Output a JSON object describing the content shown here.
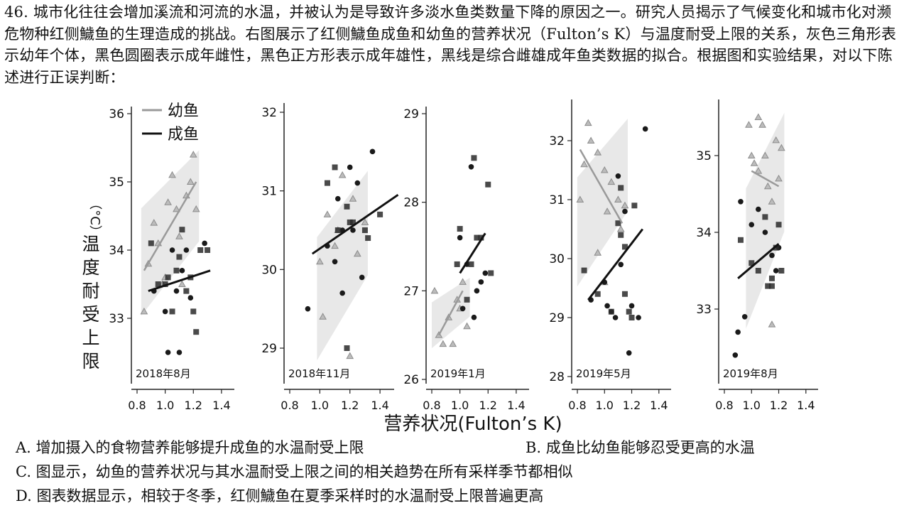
{
  "question": {
    "text": "46. 城市化往往会增加溪流和河流的水温，并被认为是导致许多淡水鱼类数量下降的原因之一。研究人员揭示了气候变化和城市化对濒危物种红侧鱥鱼的生理造成的挑战。右图展示了红侧鱥鱼成鱼和幼鱼的营养状况（Fulton’s K）与温度耐受上限的关系，灰色三角形表示幼年个体，黑色圆圈表示成年雌性，黑色正方形表示成年雄性，黑线是综合雌雄成年鱼类数据的拟合。根据图和实验结果，对以下陈述进行正误判断："
  },
  "figure": {
    "ylabel": "温度耐受上限（°C）",
    "ylabel_lines": [
      "温",
      "度",
      "耐",
      "受",
      "上",
      "限"
    ],
    "ylabel_unit": "（°C）",
    "xlabel": "营养状况(Fulton’s K)",
    "legend": {
      "juvenile": "幼鱼",
      "adult": "成鱼"
    },
    "colors": {
      "adult_line": "#111111",
      "juvenile_line": "#9a9a9a",
      "juvenile_marker": "#8c8c8c",
      "ci_band": "#d6d6d6",
      "female_marker": "#1a1a1a",
      "male_marker": "#2a2a2a"
    }
  },
  "chart_data": [
    {
      "type": "scatter",
      "panel": "2018年8月",
      "ylim": [
        32.5,
        36.2
      ],
      "yticks": [
        "33",
        "34",
        "35",
        "36"
      ],
      "xlim": [
        0.8,
        1.4
      ],
      "xticks": [
        "0.8",
        "1.0",
        "1.2",
        "1.4"
      ],
      "juvenile_points": [
        [
          0.85,
          33.1
        ],
        [
          0.88,
          33.8
        ],
        [
          0.92,
          34.4
        ],
        [
          0.95,
          34.1
        ],
        [
          1.0,
          33.6
        ],
        [
          1.02,
          34.7
        ],
        [
          1.05,
          35.1
        ],
        [
          1.08,
          34.6
        ],
        [
          1.1,
          34.2
        ],
        [
          1.12,
          33.5
        ],
        [
          1.15,
          34.8
        ],
        [
          1.18,
          35.0
        ],
        [
          1.2,
          35.4
        ],
        [
          1.22,
          34.6
        ],
        [
          0.98,
          33.5
        ]
      ],
      "female_points": [
        [
          0.92,
          33.4
        ],
        [
          1.0,
          33.1
        ],
        [
          1.02,
          32.5
        ],
        [
          1.05,
          34.0
        ],
        [
          1.08,
          33.4
        ],
        [
          1.1,
          32.5
        ],
        [
          1.12,
          33.7
        ],
        [
          1.15,
          34.0
        ],
        [
          1.28,
          34.1
        ],
        [
          1.18,
          33.3
        ]
      ],
      "male_points": [
        [
          0.9,
          34.1
        ],
        [
          0.95,
          33.5
        ],
        [
          1.0,
          33.5
        ],
        [
          1.05,
          33.1
        ],
        [
          1.08,
          33.7
        ],
        [
          1.1,
          33.9
        ],
        [
          1.12,
          34.3
        ],
        [
          1.15,
          33.4
        ],
        [
          1.18,
          33.6
        ],
        [
          1.2,
          33.1
        ],
        [
          1.22,
          32.8
        ],
        [
          1.25,
          34.0
        ],
        [
          1.3,
          34.0
        ],
        [
          1.02,
          33.6
        ]
      ],
      "juvenile_fit": [
        [
          0.85,
          33.7
        ],
        [
          1.22,
          35.0
        ]
      ],
      "adult_fit": [
        [
          0.88,
          33.4
        ],
        [
          1.32,
          33.7
        ]
      ]
    },
    {
      "type": "scatter",
      "panel": "2018年11月",
      "ylim": [
        28.8,
        32.1
      ],
      "yticks": [
        "29",
        "30",
        "31",
        "32"
      ],
      "xlim": [
        0.8,
        1.6
      ],
      "xticks": [
        "0.8",
        "1.0",
        "1.2",
        "1.4"
      ],
      "juvenile_points": [
        [
          1.0,
          30.1
        ],
        [
          1.02,
          29.4
        ],
        [
          1.05,
          30.7
        ],
        [
          1.1,
          30.3
        ],
        [
          1.15,
          31.2
        ],
        [
          1.2,
          28.9
        ],
        [
          1.22,
          30.9
        ],
        [
          1.25,
          30.2
        ],
        [
          1.3,
          30.6
        ],
        [
          1.12,
          30.5
        ]
      ],
      "female_points": [
        [
          0.92,
          29.5
        ],
        [
          1.05,
          30.3
        ],
        [
          1.1,
          30.1
        ],
        [
          1.12,
          30.9
        ],
        [
          1.15,
          30.5
        ],
        [
          1.2,
          31.3
        ],
        [
          1.25,
          31.1
        ],
        [
          1.35,
          31.5
        ],
        [
          1.28,
          29.9
        ],
        [
          1.15,
          29.7
        ],
        [
          1.22,
          30.5
        ]
      ],
      "male_points": [
        [
          1.05,
          31.1
        ],
        [
          1.1,
          31.3
        ],
        [
          1.12,
          30.5
        ],
        [
          1.18,
          30.8
        ],
        [
          1.2,
          30.6
        ],
        [
          1.22,
          30.6
        ],
        [
          1.3,
          30.5
        ],
        [
          1.32,
          30.4
        ],
        [
          1.4,
          30.7
        ],
        [
          1.18,
          29.0
        ]
      ],
      "juvenile_fit": [],
      "adult_fit": [
        [
          0.95,
          30.2
        ],
        [
          1.52,
          30.95
        ]
      ]
    },
    {
      "type": "scatter",
      "panel": "2019年1月",
      "ylim": [
        25.9,
        29.1
      ],
      "yticks": [
        "26",
        "27",
        "28",
        "29"
      ],
      "xlim": [
        0.8,
        1.4
      ],
      "xticks": [
        "0.8",
        "1.0",
        "1.2",
        "1.4"
      ],
      "juvenile_points": [
        [
          0.82,
          27.0
        ],
        [
          0.85,
          26.5
        ],
        [
          0.88,
          26.4
        ],
        [
          0.92,
          26.7
        ],
        [
          0.95,
          26.4
        ],
        [
          1.0,
          26.8
        ],
        [
          1.02,
          27.1
        ],
        [
          1.05,
          26.6
        ],
        [
          0.98,
          26.9
        ]
      ],
      "female_points": [
        [
          1.0,
          27.6
        ],
        [
          1.05,
          27.3
        ],
        [
          1.08,
          28.4
        ],
        [
          1.1,
          26.7
        ],
        [
          1.12,
          27.0
        ],
        [
          1.15,
          27.1
        ],
        [
          1.18,
          27.2
        ],
        [
          1.02,
          26.8
        ]
      ],
      "male_points": [
        [
          0.98,
          27.3
        ],
        [
          1.0,
          27.7
        ],
        [
          1.05,
          26.9
        ],
        [
          1.1,
          28.5
        ],
        [
          1.12,
          27.6
        ],
        [
          1.15,
          27.6
        ],
        [
          1.2,
          28.2
        ],
        [
          1.22,
          27.2
        ],
        [
          1.08,
          27.3
        ]
      ],
      "juvenile_fit": [
        [
          0.85,
          26.5
        ],
        [
          1.02,
          27.0
        ]
      ],
      "adult_fit": [
        [
          1.0,
          27.2
        ],
        [
          1.18,
          27.65
        ]
      ]
    },
    {
      "type": "scatter",
      "panel": "2019年5月",
      "ylim": [
        27.9,
        32.6
      ],
      "yticks": [
        "28",
        "29",
        "30",
        "31",
        "32"
      ],
      "xlim": [
        0.8,
        1.4
      ],
      "xticks": [
        "0.8",
        "1.0",
        "1.2",
        "1.4"
      ],
      "juvenile_points": [
        [
          0.82,
          31.0
        ],
        [
          0.85,
          31.6
        ],
        [
          0.88,
          32.3
        ],
        [
          0.9,
          32.0
        ],
        [
          0.95,
          31.8
        ],
        [
          1.0,
          31.5
        ],
        [
          1.02,
          30.8
        ],
        [
          1.05,
          31.3
        ],
        [
          1.1,
          31.0
        ],
        [
          1.12,
          30.5
        ],
        [
          1.15,
          30.9
        ],
        [
          0.95,
          30.1
        ],
        [
          1.0,
          29.6
        ]
      ],
      "female_points": [
        [
          0.9,
          29.3
        ],
        [
          1.0,
          29.6
        ],
        [
          1.02,
          29.2
        ],
        [
          1.05,
          29.1
        ],
        [
          1.1,
          31.4
        ],
        [
          1.12,
          29.9
        ],
        [
          1.15,
          30.8
        ],
        [
          1.18,
          28.4
        ],
        [
          1.2,
          29.2
        ],
        [
          1.25,
          29.0
        ],
        [
          1.3,
          32.2
        ],
        [
          1.08,
          29.0
        ]
      ],
      "male_points": [
        [
          0.85,
          29.8
        ],
        [
          0.95,
          29.4
        ],
        [
          1.05,
          29.1
        ],
        [
          1.1,
          30.6
        ],
        [
          1.12,
          30.4
        ],
        [
          1.15,
          30.2
        ],
        [
          1.15,
          29.4
        ],
        [
          1.18,
          29.1
        ],
        [
          1.2,
          29.0
        ],
        [
          1.22,
          30.9
        ],
        [
          1.12,
          31.2
        ]
      ],
      "juvenile_fit": [
        [
          0.82,
          31.85
        ],
        [
          1.13,
          30.6
        ]
      ],
      "adult_fit": [
        [
          0.88,
          29.3
        ],
        [
          1.28,
          30.5
        ]
      ]
    },
    {
      "type": "scatter",
      "panel": "2019年8月",
      "ylim": [
        32.2,
        35.8
      ],
      "yticks": [
        "33",
        "34",
        "35"
      ],
      "xlim": [
        0.8,
        1.4
      ],
      "xticks": [
        "0.8",
        "1.0",
        "1.2",
        "1.4"
      ],
      "juvenile_points": [
        [
          0.98,
          35.4
        ],
        [
          1.0,
          35.0
        ],
        [
          1.02,
          34.9
        ],
        [
          1.05,
          34.8
        ],
        [
          1.08,
          35.4
        ],
        [
          1.1,
          35.0
        ],
        [
          1.12,
          34.6
        ],
        [
          1.15,
          34.4
        ],
        [
          1.18,
          35.2
        ],
        [
          1.2,
          34.7
        ],
        [
          1.22,
          35.1
        ],
        [
          1.15,
          32.8
        ],
        [
          1.05,
          35.5
        ]
      ],
      "female_points": [
        [
          0.88,
          32.4
        ],
        [
          0.9,
          32.7
        ],
        [
          0.95,
          32.9
        ],
        [
          0.92,
          34.4
        ],
        [
          1.0,
          34.1
        ],
        [
          1.05,
          34.3
        ],
        [
          1.1,
          34.0
        ],
        [
          1.15,
          33.7
        ],
        [
          1.18,
          33.5
        ],
        [
          1.2,
          33.8
        ]
      ],
      "male_points": [
        [
          0.92,
          33.9
        ],
        [
          1.0,
          33.6
        ],
        [
          1.05,
          33.5
        ],
        [
          1.1,
          34.2
        ],
        [
          1.12,
          33.3
        ],
        [
          1.15,
          33.4
        ],
        [
          1.18,
          33.8
        ],
        [
          1.2,
          34.1
        ],
        [
          1.22,
          33.5
        ],
        [
          1.15,
          33.3
        ]
      ],
      "juvenile_fit": [
        [
          1.0,
          34.8
        ],
        [
          1.2,
          34.6
        ]
      ],
      "adult_fit": [
        [
          0.9,
          33.4
        ],
        [
          1.2,
          33.85
        ]
      ]
    }
  ],
  "options": {
    "a": "A. 增加摄入的食物营养能够提升成鱼的水温耐受上限",
    "b": "B. 成鱼比幼鱼能够忍受更高的水温",
    "c": "C. 图显示，幼鱼的营养状况与其水温耐受上限之间的相关趋势在所有采样季节都相似",
    "d": "D. 图表数据显示，相较于冬季，红侧鱥鱼在夏季采样时的水温耐受上限普遍更高"
  }
}
